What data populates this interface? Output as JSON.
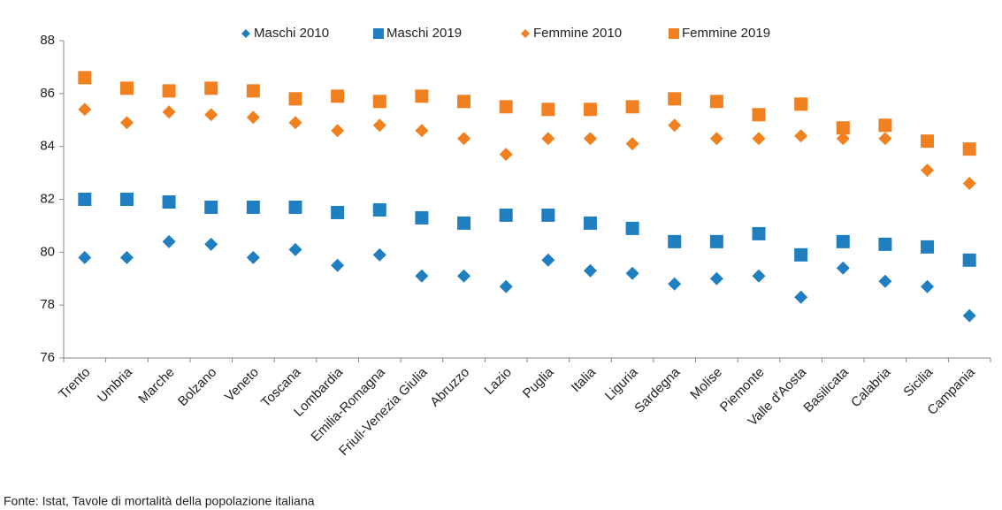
{
  "chart_data": {
    "type": "scatter",
    "categories": [
      "Trento",
      "Umbria",
      "Marche",
      "Bolzano",
      "Veneto",
      "Toscana",
      "Lombardia",
      "Emilia-Romagna",
      "Friuli-Venezia Giulia",
      "Abruzzo",
      "Lazio",
      "Puglia",
      "Italia",
      "Liguria",
      "Sardegna",
      "Molise",
      "Piemonte",
      "Valle d'Aosta",
      "Basilicata",
      "Calabria",
      "Sicilia",
      "Campania"
    ],
    "series": [
      {
        "name": "Maschi 2010",
        "color": "#1f7fc0",
        "marker": "diamond",
        "values": [
          79.8,
          79.8,
          80.4,
          80.3,
          79.8,
          80.1,
          79.5,
          79.9,
          79.1,
          79.1,
          78.7,
          79.7,
          79.3,
          79.2,
          78.8,
          79.0,
          79.1,
          78.3,
          79.4,
          78.9,
          78.7,
          77.6
        ]
      },
      {
        "name": "Maschi 2019",
        "color": "#1f7fc0",
        "marker": "square",
        "values": [
          82.0,
          82.0,
          81.9,
          81.7,
          81.7,
          81.7,
          81.5,
          81.6,
          81.3,
          81.1,
          81.4,
          81.4,
          81.1,
          80.9,
          80.4,
          80.4,
          80.7,
          79.9,
          80.4,
          80.3,
          80.2,
          79.7
        ]
      },
      {
        "name": "Femmine 2010",
        "color": "#f08020",
        "marker": "diamond",
        "values": [
          85.4,
          84.9,
          85.3,
          85.2,
          85.1,
          84.9,
          84.6,
          84.8,
          84.6,
          84.3,
          83.7,
          84.3,
          84.3,
          84.1,
          84.8,
          84.3,
          84.3,
          84.4,
          84.3,
          84.3,
          83.1,
          82.6
        ]
      },
      {
        "name": "Femmine 2019",
        "color": "#f08020",
        "marker": "square",
        "values": [
          86.6,
          86.2,
          86.1,
          86.2,
          86.1,
          85.8,
          85.9,
          85.7,
          85.9,
          85.7,
          85.5,
          85.4,
          85.4,
          85.5,
          85.8,
          85.7,
          85.2,
          85.6,
          84.7,
          84.8,
          84.2,
          83.9
        ]
      }
    ],
    "ylim": [
      76,
      88
    ],
    "yticks": [
      76,
      78,
      80,
      82,
      84,
      86,
      88
    ],
    "legend": "top",
    "source": "Fonte: Istat, Tavole di mortalità della popolazione italiana"
  }
}
